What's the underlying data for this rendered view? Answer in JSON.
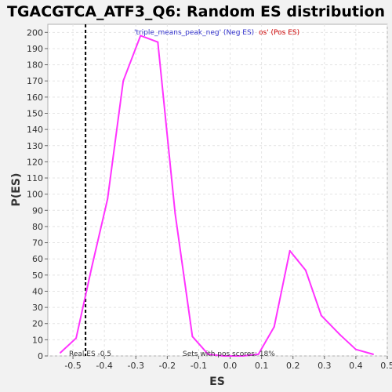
{
  "chart_data": {
    "type": "line",
    "title": "TGACGTCA_ATF3_Q6: Random ES distribution",
    "xlabel": "ES",
    "ylabel": "P(ES)",
    "xlim": [
      -0.58,
      0.5
    ],
    "ylim": [
      0,
      205
    ],
    "x_ticks": [
      -0.5,
      -0.4,
      -0.3,
      -0.2,
      -0.1,
      0.0,
      0.1,
      0.2,
      0.3,
      0.4,
      0.5
    ],
    "y_ticks": [
      0,
      10,
      20,
      30,
      40,
      50,
      60,
      70,
      80,
      90,
      100,
      110,
      120,
      130,
      140,
      150,
      160,
      170,
      180,
      190,
      200
    ],
    "grid": true,
    "series": [
      {
        "color": "#ff33ff",
        "x": [
          -0.54,
          -0.49,
          -0.44,
          -0.39,
          -0.34,
          -0.285,
          -0.23,
          -0.175,
          -0.12,
          -0.07,
          -0.02,
          0.04,
          0.09,
          0.14,
          0.19,
          0.24,
          0.29,
          0.35,
          0.4,
          0.455
        ],
        "y": [
          2,
          11,
          55,
          97,
          170,
          198,
          194,
          88,
          12,
          1,
          0,
          0,
          1,
          18,
          65,
          53,
          25,
          13,
          4,
          1
        ]
      }
    ],
    "real_es_line": {
      "x": -0.46,
      "label": "Real ES -0.5"
    },
    "legend": {
      "placement": "top-center",
      "neg_text": "'triple_means_peak_neg' (Neg ES)",
      "pos_text": "os' (Pos ES)",
      "neg_color": "#3333cc",
      "pos_color": "#cc0000"
    },
    "annotation": "Sets with pos scores: 18%"
  }
}
